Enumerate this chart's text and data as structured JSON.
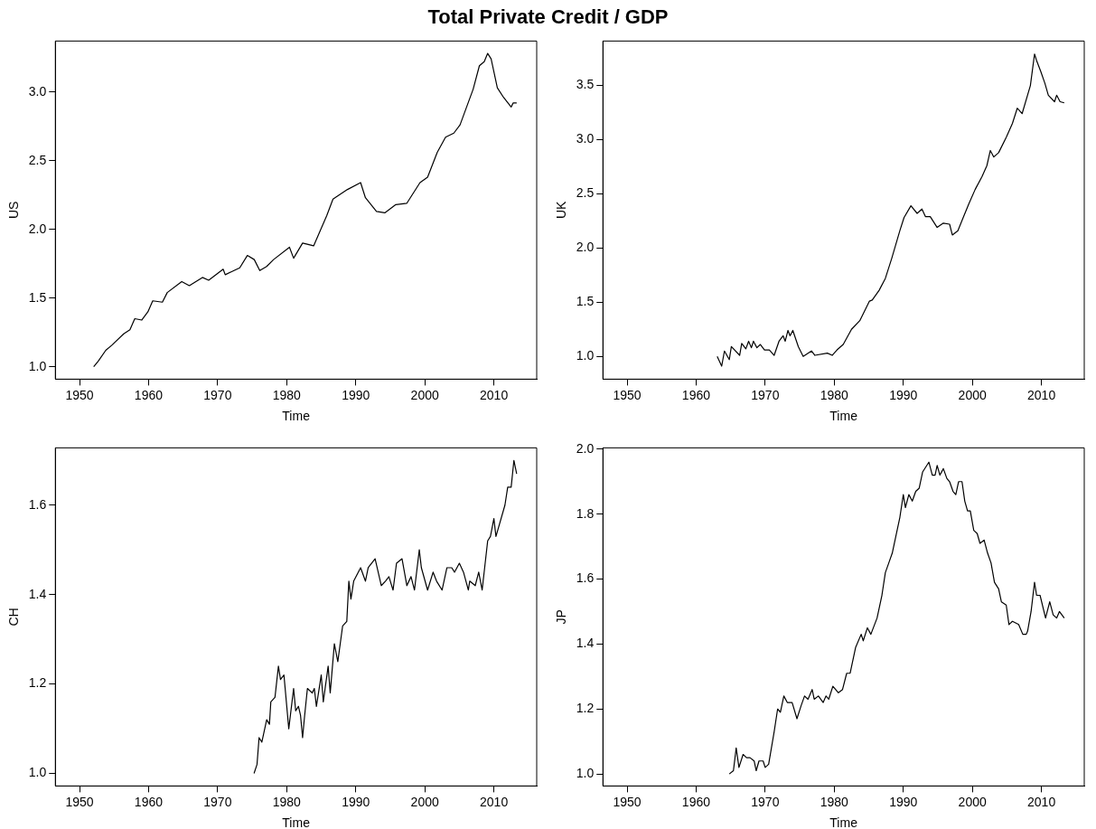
{
  "chart_data": [
    {
      "type": "line",
      "title": "Total Private Credit / GDP",
      "xlabel": "Time",
      "ylabel": "US",
      "xlim": [
        1946.5,
        2016.2
      ],
      "xticks": [
        1950,
        1960,
        1970,
        1980,
        1990,
        2000,
        2010
      ],
      "ylim": [
        0.91,
        3.37
      ],
      "yticks": [
        {
          "value": 1,
          "label": "1.0"
        },
        1.5,
        {
          "value": 2,
          "label": "2.0"
        },
        2.5,
        {
          "value": 3,
          "label": "3.0"
        }
      ],
      "x": [
        1952.05,
        1952.7,
        1953.8,
        1954.75,
        1956.4,
        1957.3,
        1958.0,
        1959.0,
        1959.9,
        1960.6,
        1962.0,
        1962.7,
        1964.8,
        1965.9,
        1967.8,
        1968.7,
        1970.8,
        1971.1,
        1973.2,
        1974.3,
        1975.3,
        1976.1,
        1977.1,
        1978.1,
        1980.4,
        1981.0,
        1982.3,
        1983.9,
        1985.8,
        1986.7,
        1988.8,
        1990.7,
        1991.4,
        1993.0,
        1994.2,
        1995.8,
        1997.4,
        1999.3,
        2000.4,
        2001.8,
        2003.0,
        2004.2,
        2005.1,
        2007.0,
        2007.9,
        2008.6,
        2009.1,
        2009.6,
        2010.5,
        2011.4,
        2012.5,
        2012.8,
        2013.3
      ],
      "series": [
        {
          "color": "#000000",
          "values": [
            1.0,
            1.04,
            1.12,
            1.16,
            1.24,
            1.27,
            1.35,
            1.34,
            1.4,
            1.48,
            1.47,
            1.54,
            1.62,
            1.59,
            1.65,
            1.63,
            1.71,
            1.67,
            1.72,
            1.81,
            1.78,
            1.7,
            1.73,
            1.78,
            1.87,
            1.79,
            1.9,
            1.88,
            2.1,
            2.22,
            2.29,
            2.34,
            2.23,
            2.13,
            2.12,
            2.18,
            2.19,
            2.34,
            2.38,
            2.56,
            2.67,
            2.7,
            2.76,
            3.02,
            3.19,
            3.22,
            3.28,
            3.24,
            3.03,
            2.96,
            2.89,
            2.92,
            2.92
          ]
        }
      ]
    },
    {
      "type": "line",
      "xlabel": "Time",
      "ylabel": "UK",
      "xlim": [
        1946.5,
        2016.2
      ],
      "xticks": [
        1950,
        1960,
        1970,
        1980,
        1990,
        2000,
        2010
      ],
      "ylim": [
        0.79,
        3.91
      ],
      "yticks": [
        {
          "value": 1,
          "label": "1.0"
        },
        1.5,
        {
          "value": 2,
          "label": "2.0"
        },
        2.5,
        {
          "value": 3,
          "label": "3.0"
        },
        3.5
      ],
      "x": [
        1963.05,
        1963.7,
        1964.1,
        1964.8,
        1965.1,
        1966.3,
        1966.6,
        1967.2,
        1967.6,
        1968.0,
        1968.3,
        1968.8,
        1969.3,
        1969.9,
        1970.6,
        1971.3,
        1972.0,
        1972.6,
        1972.9,
        1973.3,
        1973.6,
        1974.0,
        1974.8,
        1975.5,
        1976.7,
        1977.2,
        1979.0,
        1979.7,
        1980.4,
        1981.3,
        1982.5,
        1983.7,
        1985.1,
        1985.5,
        1986.5,
        1987.4,
        1988.3,
        1989.5,
        1990.1,
        1991.1,
        1992.0,
        1992.7,
        1993.2,
        1993.9,
        1994.9,
        1995.8,
        1996.7,
        1997.1,
        1997.9,
        1998.6,
        1999.5,
        2000.4,
        2001.4,
        2002.1,
        2002.6,
        2003.1,
        2003.8,
        2004.9,
        2005.8,
        2006.5,
        2007.2,
        2008.4,
        2009.0,
        2009.3,
        2009.9,
        2010.5,
        2011.0,
        2011.9,
        2012.2,
        2012.7,
        2013.3
      ],
      "series": [
        {
          "color": "#000000",
          "values": [
            1.0,
            0.91,
            1.05,
            0.97,
            1.09,
            1.01,
            1.12,
            1.07,
            1.14,
            1.08,
            1.14,
            1.08,
            1.11,
            1.06,
            1.06,
            1.01,
            1.14,
            1.19,
            1.14,
            1.24,
            1.19,
            1.24,
            1.09,
            1.0,
            1.05,
            1.01,
            1.03,
            1.01,
            1.06,
            1.11,
            1.25,
            1.33,
            1.51,
            1.52,
            1.61,
            1.72,
            1.9,
            2.16,
            2.28,
            2.39,
            2.32,
            2.36,
            2.29,
            2.29,
            2.19,
            2.23,
            2.22,
            2.12,
            2.16,
            2.27,
            2.41,
            2.54,
            2.66,
            2.76,
            2.9,
            2.84,
            2.88,
            3.02,
            3.15,
            3.29,
            3.24,
            3.5,
            3.79,
            3.73,
            3.63,
            3.52,
            3.41,
            3.35,
            3.41,
            3.35,
            3.34
          ]
        }
      ]
    },
    {
      "type": "line",
      "xlabel": "Time",
      "ylabel": "CH",
      "xlim": [
        1946.5,
        2016.2
      ],
      "xticks": [
        1950,
        1960,
        1970,
        1980,
        1990,
        2000,
        2010
      ],
      "ylim": [
        0.972,
        1.728
      ],
      "yticks": [
        {
          "value": 1,
          "label": "1.0"
        },
        1.2,
        1.4,
        1.6
      ],
      "x": [
        1975.27,
        1975.7,
        1976.0,
        1976.4,
        1977.1,
        1977.5,
        1977.7,
        1978.3,
        1978.8,
        1979.1,
        1979.6,
        1980.3,
        1981.0,
        1981.3,
        1981.7,
        1982.0,
        1982.3,
        1982.6,
        1983.0,
        1983.7,
        1984.0,
        1984.3,
        1985.0,
        1985.3,
        1986.0,
        1986.3,
        1986.9,
        1987.4,
        1988.1,
        1988.7,
        1989.0,
        1989.3,
        1989.7,
        1990.7,
        1991.4,
        1991.8,
        1992.8,
        1993.7,
        1994.3,
        1994.8,
        1995.4,
        1995.9,
        1996.7,
        1997.4,
        1998.0,
        1998.5,
        1999.2,
        1999.5,
        2000.4,
        2001.2,
        2001.7,
        2002.5,
        2003.2,
        2003.9,
        2004.3,
        2005.0,
        2005.6,
        2006.3,
        2006.5,
        2007.3,
        2007.8,
        2008.3,
        2009.1,
        2009.5,
        2010.0,
        2010.3,
        2011.6,
        2012.0,
        2012.5,
        2012.9,
        2013.3
      ],
      "series": [
        {
          "color": "#000000",
          "values": [
            1.0,
            1.02,
            1.08,
            1.07,
            1.12,
            1.11,
            1.16,
            1.17,
            1.24,
            1.21,
            1.22,
            1.1,
            1.19,
            1.14,
            1.15,
            1.13,
            1.08,
            1.13,
            1.19,
            1.18,
            1.19,
            1.15,
            1.22,
            1.16,
            1.24,
            1.18,
            1.29,
            1.25,
            1.33,
            1.34,
            1.43,
            1.39,
            1.43,
            1.46,
            1.43,
            1.46,
            1.48,
            1.42,
            1.43,
            1.44,
            1.41,
            1.47,
            1.48,
            1.42,
            1.44,
            1.41,
            1.5,
            1.46,
            1.41,
            1.45,
            1.43,
            1.41,
            1.46,
            1.46,
            1.45,
            1.47,
            1.45,
            1.41,
            1.43,
            1.42,
            1.45,
            1.41,
            1.52,
            1.53,
            1.57,
            1.53,
            1.6,
            1.64,
            1.64,
            1.7,
            1.67
          ]
        }
      ]
    },
    {
      "type": "line",
      "xlabel": "Time",
      "ylabel": "JP",
      "xlim": [
        1946.5,
        2016.2
      ],
      "xticks": [
        1950,
        1960,
        1970,
        1980,
        1990,
        2000,
        2010
      ],
      "ylim": [
        0.963,
        2.004
      ],
      "yticks": [
        {
          "value": 1,
          "label": "1.0"
        },
        1.2,
        1.4,
        1.6,
        1.8,
        {
          "value": 2,
          "label": "2.0"
        }
      ],
      "x": [
        1964.8,
        1965.4,
        1965.8,
        1966.2,
        1966.8,
        1967.3,
        1967.8,
        1968.4,
        1968.7,
        1969.1,
        1969.7,
        1970.0,
        1970.5,
        1971.3,
        1971.8,
        1972.2,
        1972.7,
        1973.2,
        1973.9,
        1974.6,
        1975.2,
        1975.7,
        1976.2,
        1976.8,
        1977.1,
        1977.7,
        1978.4,
        1978.8,
        1979.2,
        1979.8,
        1980.6,
        1981.2,
        1981.8,
        1982.3,
        1983.1,
        1983.9,
        1984.2,
        1984.8,
        1985.3,
        1986.2,
        1986.9,
        1987.4,
        1987.9,
        1988.4,
        1988.9,
        1989.5,
        1990.0,
        1990.3,
        1990.8,
        1991.3,
        1991.8,
        1992.3,
        1992.8,
        1993.7,
        1994.2,
        1994.6,
        1994.9,
        1995.3,
        1995.8,
        1996.3,
        1996.7,
        1997.2,
        1997.6,
        1998.0,
        1998.5,
        1998.9,
        1999.3,
        1999.7,
        2000.2,
        2000.7,
        2001.1,
        2001.7,
        2002.2,
        2002.7,
        2003.2,
        2003.8,
        2004.2,
        2004.9,
        2005.3,
        2005.8,
        2006.7,
        2007.3,
        2007.8,
        2008.0,
        2008.5,
        2009.0,
        2009.3,
        2009.8,
        2010.6,
        2011.2,
        2011.7,
        2012.2,
        2012.6,
        2013.3
      ],
      "series": [
        {
          "color": "#000000",
          "values": [
            1.0,
            1.01,
            1.08,
            1.02,
            1.06,
            1.05,
            1.05,
            1.04,
            1.01,
            1.04,
            1.04,
            1.02,
            1.03,
            1.13,
            1.2,
            1.19,
            1.24,
            1.22,
            1.22,
            1.17,
            1.21,
            1.24,
            1.23,
            1.26,
            1.23,
            1.24,
            1.22,
            1.24,
            1.23,
            1.27,
            1.25,
            1.26,
            1.31,
            1.31,
            1.39,
            1.43,
            1.41,
            1.45,
            1.43,
            1.48,
            1.55,
            1.62,
            1.65,
            1.68,
            1.73,
            1.79,
            1.86,
            1.82,
            1.86,
            1.84,
            1.87,
            1.88,
            1.93,
            1.96,
            1.92,
            1.92,
            1.95,
            1.92,
            1.94,
            1.91,
            1.9,
            1.87,
            1.86,
            1.9,
            1.9,
            1.84,
            1.81,
            1.81,
            1.75,
            1.74,
            1.71,
            1.72,
            1.68,
            1.65,
            1.59,
            1.57,
            1.53,
            1.52,
            1.46,
            1.47,
            1.46,
            1.43,
            1.43,
            1.44,
            1.5,
            1.59,
            1.55,
            1.55,
            1.48,
            1.53,
            1.49,
            1.48,
            1.5,
            1.48
          ]
        }
      ]
    }
  ]
}
